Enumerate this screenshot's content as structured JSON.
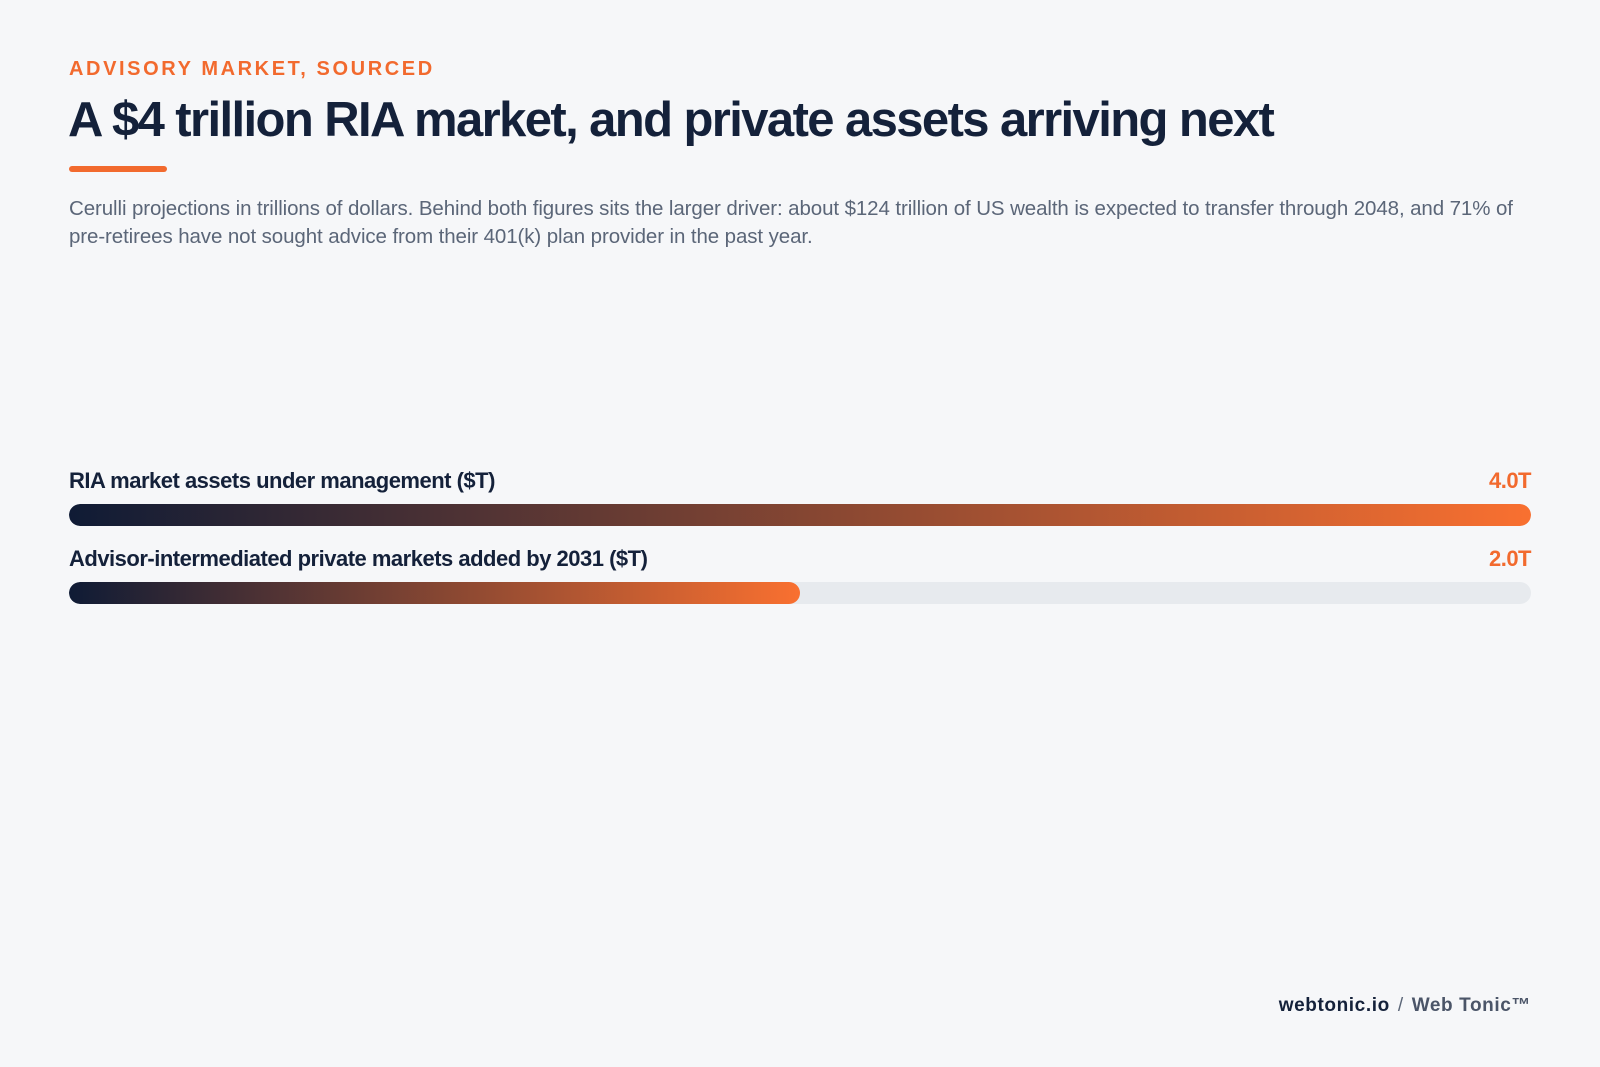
{
  "header": {
    "eyebrow": "ADVISORY MARKET, SOURCED",
    "title": "A $4 trillion RIA market, and private assets arriving next",
    "subtitle": "Cerulli projections in trillions of dollars. Behind both figures sits the larger driver: about $124 trillion of US wealth is expected to transfer through 2048, and 71% of pre-retirees have not sought advice from their 401(k) plan provider in the past year."
  },
  "colors": {
    "accent": "#f26a2e",
    "ink": "#14213a",
    "muted": "#5b6678",
    "track": "#e7eaee",
    "gradient_start": "#0f1b35",
    "gradient_end": "#f97030"
  },
  "chart_data": {
    "type": "bar",
    "orientation": "horizontal",
    "categories": [
      "RIA market assets under management ($T)",
      "Advisor-intermediated private markets added by 2031 ($T)"
    ],
    "values": [
      4.0,
      2.0
    ],
    "value_labels": [
      "4.0T",
      "2.0T"
    ],
    "xlim": [
      0,
      4.0
    ],
    "grid": false,
    "legend": "none"
  },
  "footer": {
    "domain": "webtonic.io",
    "separator": "/",
    "brand": "Web Tonic™"
  }
}
